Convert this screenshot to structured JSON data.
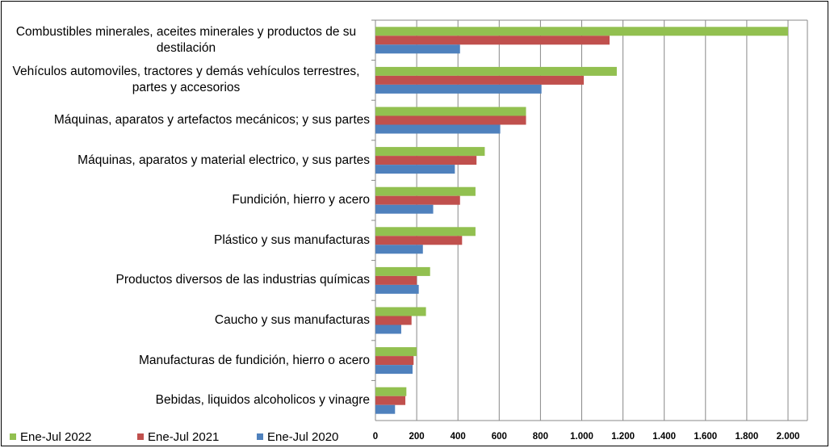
{
  "chart_data": {
    "type": "barh",
    "categories": [
      "Combustibles minerales, aceites minerales y productos de su destilación",
      "Vehículos automoviles, tractores y demás vehículos terrestres, partes y accesorios",
      "Máquinas, aparatos y artefactos mecánicos; y sus partes",
      "Máquinas, aparatos y material electrico, y sus partes",
      "Fundición, hierro y acero",
      "Plástico y sus manufacturas",
      "Productos diversos de las industrias químicas",
      "Caucho y sus manufacturas",
      "Manufacturas de fundición, hierro o acero",
      "Bebidas, liquidos alcoholicos y vinagre"
    ],
    "series": [
      {
        "name": "Ene-Jul 2022",
        "color": "#92c050",
        "values": [
          2000,
          1170,
          730,
          530,
          485,
          485,
          265,
          245,
          200,
          150
        ]
      },
      {
        "name": "Ene-Jul 2021",
        "color": "#c0504d",
        "values": [
          1135,
          1010,
          730,
          490,
          410,
          420,
          200,
          175,
          185,
          145
        ]
      },
      {
        "name": "Ene-Jul 2020",
        "color": "#4f81bd",
        "values": [
          410,
          805,
          605,
          385,
          280,
          230,
          210,
          125,
          180,
          95
        ]
      }
    ],
    "xlim": [
      0,
      2000
    ],
    "xticks": [
      0,
      200,
      400,
      600,
      800,
      {
        "value": 1000,
        "label": "1.000"
      },
      {
        "value": 1200,
        "label": "1.200"
      },
      {
        "value": 1400,
        "label": "1.400"
      },
      {
        "value": 1600,
        "label": "1.600"
      },
      {
        "value": 1800,
        "label": "1.800"
      },
      {
        "value": 2000,
        "label": "2.000"
      }
    ],
    "grid": true,
    "legend": "bottom"
  }
}
